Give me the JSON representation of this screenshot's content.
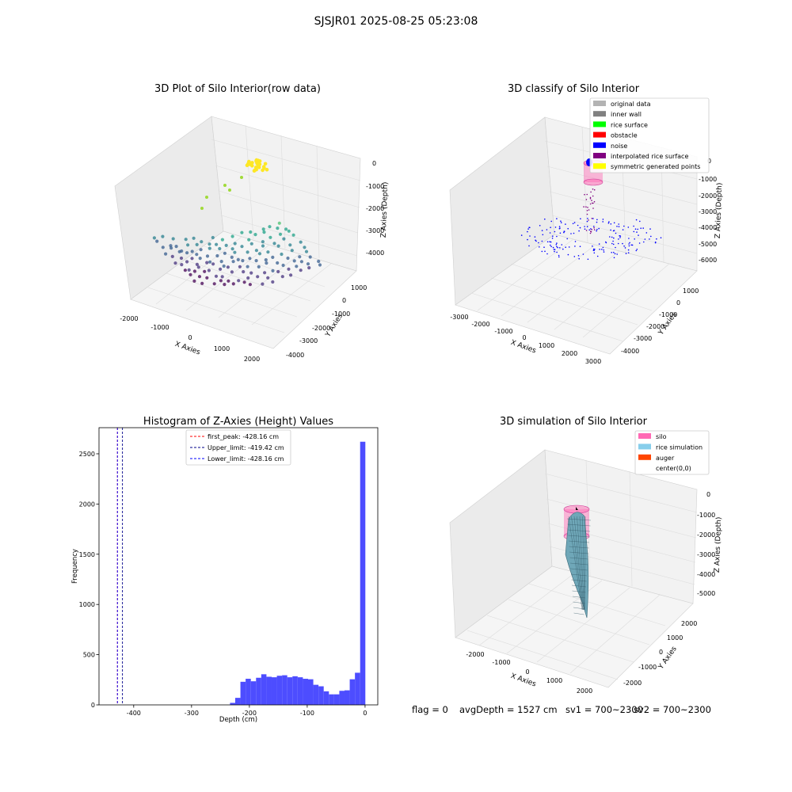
{
  "suptitle": "SJSJR01 2025-08-25 05:23:08",
  "footer": {
    "flag": "flag = 0",
    "avg": "avgDepth = 1527 cm",
    "sv1": "sv1 = 700~2300",
    "sv2": "sv2 = 700~2300"
  },
  "chart_data": [
    {
      "type": "scatter",
      "title": "3D Plot of Silo Interior(row data)",
      "xlabel": "X Axies",
      "ylabel": "Y Axies",
      "zlabel": "Z Axies (Depth)",
      "x_ticks": [
        "-2000",
        "-1000",
        "0",
        "1000",
        "2000"
      ],
      "y_ticks": [
        "1000",
        "0",
        "-1000",
        "-2000",
        "-3000",
        "-4000"
      ],
      "z_ticks": [
        "0",
        "-1000",
        "-2000",
        "-3000",
        "-4000"
      ],
      "colormap": "viridis (by depth)"
    },
    {
      "type": "scatter",
      "title": "3D classify of Silo Interior",
      "xlabel": "X Axies",
      "ylabel": "Y Axies",
      "zlabel": "Z Axies (Depth)",
      "x_ticks": [
        "-3000",
        "-2000",
        "-1000",
        "0",
        "1000",
        "2000",
        "3000"
      ],
      "y_ticks": [
        "1000",
        "0",
        "-1000",
        "-2000",
        "-3000",
        "-4000"
      ],
      "z_ticks": [
        "0",
        "-1000",
        "-2000",
        "-3000",
        "-4000",
        "-5000",
        "-6000"
      ],
      "legend_position": "top-right",
      "legend": [
        {
          "label": "original data",
          "color": "#b3b3b3"
        },
        {
          "label": "inner wall",
          "color": "#808080"
        },
        {
          "label": "rice surface",
          "color": "#00ff00"
        },
        {
          "label": "obstacle",
          "color": "#ff0000"
        },
        {
          "label": "noise",
          "color": "#0000ff"
        },
        {
          "label": "interpolated rice surface",
          "color": "#800080"
        },
        {
          "label": "symmetric generated points",
          "color": "#ffff00"
        }
      ]
    },
    {
      "type": "bar",
      "title": "Histogram of Z-Axies (Height) Values",
      "xlabel": "Depth (cm)",
      "ylabel": "Frequency",
      "xlim": [
        -460,
        22
      ],
      "ylim": [
        0,
        2760
      ],
      "x_ticks": [
        -400,
        -300,
        -200,
        -100,
        0
      ],
      "y_ticks": [
        0,
        500,
        1000,
        1500,
        2000,
        2500
      ],
      "bin_width": 9,
      "bins": [
        {
          "x": -229,
          "value": 20
        },
        {
          "x": -220,
          "value": 70
        },
        {
          "x": -211,
          "value": 230
        },
        {
          "x": -202,
          "value": 260
        },
        {
          "x": -193,
          "value": 235
        },
        {
          "x": -184,
          "value": 270
        },
        {
          "x": -175,
          "value": 305
        },
        {
          "x": -166,
          "value": 280
        },
        {
          "x": -157,
          "value": 275
        },
        {
          "x": -148,
          "value": 290
        },
        {
          "x": -139,
          "value": 295
        },
        {
          "x": -130,
          "value": 275
        },
        {
          "x": -121,
          "value": 285
        },
        {
          "x": -112,
          "value": 275
        },
        {
          "x": -103,
          "value": 260
        },
        {
          "x": -94,
          "value": 255
        },
        {
          "x": -85,
          "value": 200
        },
        {
          "x": -76,
          "value": 185
        },
        {
          "x": -67,
          "value": 135
        },
        {
          "x": -58,
          "value": 105
        },
        {
          "x": -49,
          "value": 105
        },
        {
          "x": -40,
          "value": 140
        },
        {
          "x": -31,
          "value": 145
        },
        {
          "x": -22,
          "value": 255
        },
        {
          "x": -13,
          "value": 320
        },
        {
          "x": -4,
          "value": 2620
        }
      ],
      "bar_color": "#4d4dff",
      "vlines": [
        {
          "label": "first_peak: -428.16 cm",
          "x": -428.16,
          "color": "#ff0000"
        },
        {
          "label": "Upper_limit: -419.42 cm",
          "x": -419.42,
          "color": "#00008b"
        },
        {
          "label": "Lower_limit: -428.16 cm",
          "x": -428.16,
          "color": "#0000ff"
        }
      ],
      "legend_position": "top-center"
    },
    {
      "type": "surface",
      "title": "3D simulation of Silo Interior",
      "xlabel": "X Axies",
      "ylabel": "Y Axies",
      "zlabel": "Z Axies (Depth)",
      "x_ticks": [
        "-2000",
        "-1000",
        "0",
        "1000",
        "2000"
      ],
      "y_ticks": [
        "2000",
        "1000",
        "0",
        "-1000",
        "-2000"
      ],
      "z_ticks": [
        "0",
        "-1000",
        "-2000",
        "-3000",
        "-4000",
        "-5000"
      ],
      "legend_position": "top-right",
      "legend": [
        {
          "label": "silo",
          "color": "#ff69b4"
        },
        {
          "label": "rice simulation",
          "color": "#87ceeb"
        },
        {
          "label": "auger",
          "color": "#ff4500"
        },
        {
          "label": "center(0,0)",
          "color": ""
        }
      ]
    }
  ]
}
